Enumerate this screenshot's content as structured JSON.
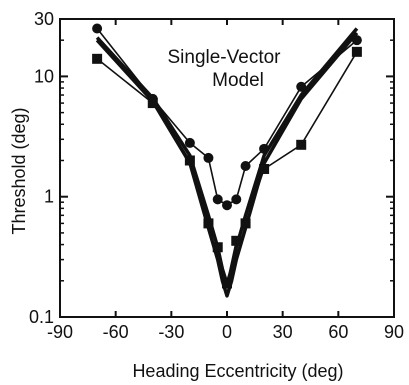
{
  "chart_data": {
    "type": "line",
    "title": "",
    "xlabel": "Heading Eccentricity (deg)",
    "ylabel": "Threshold (deg)",
    "xlim": [
      -90,
      90
    ],
    "ylim": [
      0.1,
      30
    ],
    "yscale": "log",
    "x_ticks": [
      -90,
      -60,
      -30,
      0,
      30,
      60,
      90
    ],
    "y_ticks": [
      0.1,
      1,
      10,
      30
    ],
    "grid": false,
    "legend": "none",
    "annotation": [
      "Single-Vector",
      "Model"
    ],
    "series": [
      {
        "marker": "circle",
        "line": "thin",
        "x": [
          -70,
          -40,
          -20,
          -10,
          -5,
          0,
          5,
          10,
          20,
          40,
          70
        ],
        "y": [
          25,
          6.5,
          2.8,
          2.1,
          0.95,
          0.85,
          0.95,
          1.8,
          2.5,
          8.2,
          20
        ]
      },
      {
        "marker": "square",
        "line": "thin",
        "x": [
          -70,
          -40,
          -20,
          -10,
          -5,
          0,
          5,
          10,
          20,
          40,
          70
        ],
        "y": [
          14,
          6,
          2,
          0.6,
          0.38,
          0.19,
          0.43,
          0.6,
          1.7,
          2.7,
          16
        ]
      },
      {
        "marker": "none",
        "line": "thick",
        "x": [
          -70,
          -40,
          -20,
          -10,
          -5,
          -2.5,
          0,
          2.5,
          5,
          10,
          20,
          40,
          70
        ],
        "y": [
          20,
          6.2,
          1.9,
          0.55,
          0.3,
          0.2,
          0.15,
          0.2,
          0.3,
          0.55,
          1.9,
          6.5,
          23
        ]
      },
      {
        "marker": "none",
        "line": "thick",
        "x": [
          -70,
          -40,
          -20,
          -10,
          -5,
          -2.5,
          0,
          2.5,
          5,
          10,
          20,
          40,
          70
        ],
        "y": [
          21,
          6.6,
          2.2,
          0.7,
          0.38,
          0.25,
          0.19,
          0.25,
          0.38,
          0.7,
          2.2,
          7,
          25
        ]
      }
    ],
    "colors": {
      "ink": "#111111",
      "background": "#ffffff"
    }
  }
}
